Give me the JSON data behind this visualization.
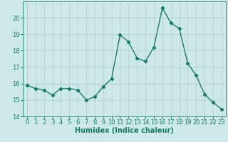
{
  "x": [
    0,
    1,
    2,
    3,
    4,
    5,
    6,
    7,
    8,
    9,
    10,
    11,
    12,
    13,
    14,
    15,
    16,
    17,
    18,
    19,
    20,
    21,
    22,
    23
  ],
  "y": [
    15.9,
    15.7,
    15.6,
    15.3,
    15.7,
    15.7,
    15.6,
    15.0,
    15.2,
    15.8,
    16.3,
    18.95,
    18.55,
    17.55,
    17.35,
    18.2,
    20.6,
    19.7,
    19.35,
    17.25,
    16.5,
    15.35,
    14.85,
    14.45
  ],
  "line_color": "#1a7a6e",
  "marker": "D",
  "marker_size": 2.2,
  "bg_color": "#cde8e8",
  "grid_color": "#b0cccc",
  "xlabel": "Humidex (Indice chaleur)",
  "ylim": [
    14,
    21
  ],
  "xlim": [
    -0.5,
    23.5
  ],
  "yticks": [
    14,
    15,
    16,
    17,
    18,
    19,
    20
  ],
  "xticks": [
    0,
    1,
    2,
    3,
    4,
    5,
    6,
    7,
    8,
    9,
    10,
    11,
    12,
    13,
    14,
    15,
    16,
    17,
    18,
    19,
    20,
    21,
    22,
    23
  ],
  "xlabel_fontsize": 7,
  "tick_fontsize": 6,
  "line_width": 1.0
}
